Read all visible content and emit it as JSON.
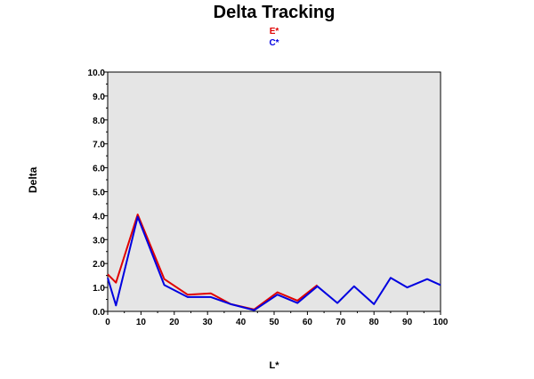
{
  "chart_data": {
    "type": "line",
    "title": "Delta Tracking",
    "xlabel": "L*",
    "ylabel": "Delta",
    "xlim": [
      0,
      100
    ],
    "ylim": [
      0,
      10
    ],
    "x_ticks": [
      "0",
      "10",
      "20",
      "30",
      "40",
      "50",
      "60",
      "70",
      "80",
      "90",
      "100"
    ],
    "y_ticks": [
      "0.0",
      "1.0",
      "2.0",
      "3.0",
      "4.0",
      "5.0",
      "6.0",
      "7.0",
      "8.0",
      "9.0",
      "10.0"
    ],
    "grid": false,
    "plot_background": "#e5e5e5",
    "legend_position": "top-center",
    "series": [
      {
        "name": "E*",
        "color": "#e00000",
        "x": [
          0,
          2.5,
          9,
          17,
          24,
          31,
          37,
          44,
          51,
          57,
          63
        ],
        "y": [
          1.55,
          1.2,
          4.05,
          1.35,
          0.7,
          0.75,
          0.3,
          0.08,
          0.8,
          0.45,
          1.1
        ]
      },
      {
        "name": "C*",
        "color": "#0000e0",
        "x": [
          0,
          2.5,
          9,
          17,
          24,
          31,
          37,
          44,
          51,
          57,
          63,
          69,
          74,
          80,
          85,
          90,
          96,
          100
        ],
        "y": [
          1.4,
          0.25,
          3.95,
          1.1,
          0.6,
          0.6,
          0.3,
          0.05,
          0.7,
          0.35,
          1.05,
          0.35,
          1.05,
          0.3,
          1.4,
          1.0,
          1.35,
          1.1
        ]
      }
    ]
  }
}
